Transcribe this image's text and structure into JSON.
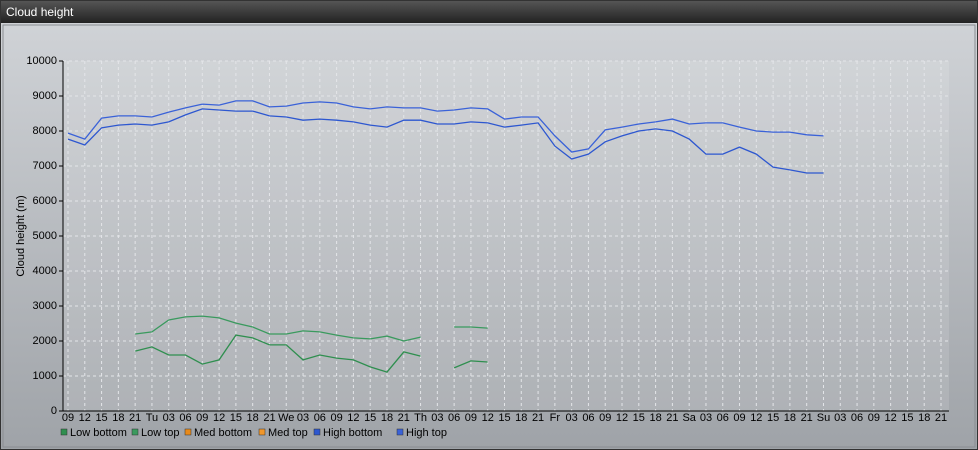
{
  "window": {
    "title": "Cloud height"
  },
  "chart_data": {
    "type": "line",
    "ylabel": "Cloud height (m)",
    "categories": [
      "09",
      "12",
      "15",
      "18",
      "21",
      "Tu",
      "03",
      "06",
      "09",
      "12",
      "15",
      "18",
      "21",
      "We",
      "03",
      "06",
      "09",
      "12",
      "15",
      "18",
      "21",
      "Th",
      "03",
      "06",
      "09",
      "12",
      "15",
      "18",
      "21",
      "Fr",
      "03",
      "06",
      "09",
      "12",
      "15",
      "18",
      "21",
      "Sa",
      "03",
      "06",
      "09",
      "12",
      "15",
      "18",
      "21",
      "Su",
      "03",
      "06",
      "09",
      "12",
      "15",
      "18",
      "21"
    ],
    "ylim": [
      0,
      10000
    ],
    "yticks": [
      0,
      1000,
      2000,
      3000,
      4000,
      5000,
      6000,
      7000,
      8000,
      9000,
      10000
    ],
    "grid": true,
    "series": [
      {
        "name": "Low bottom",
        "color": "#2f8f4f",
        "values": [
          null,
          null,
          null,
          null,
          1710,
          1830,
          1600,
          1600,
          1340,
          1460,
          2170,
          2090,
          1890,
          1890,
          1460,
          1600,
          1510,
          1460,
          1260,
          1110,
          1690,
          1570,
          null,
          1230,
          1430,
          1400,
          null,
          null,
          null,
          null,
          null,
          null,
          null,
          null,
          null,
          null,
          null,
          null,
          null,
          null,
          null,
          null,
          null,
          null,
          null,
          null,
          null,
          null,
          null,
          null,
          null,
          null,
          null
        ]
      },
      {
        "name": "Low top",
        "color": "#3a9a5e",
        "values": [
          null,
          null,
          null,
          null,
          2200,
          2260,
          2600,
          2690,
          2710,
          2660,
          2510,
          2400,
          2200,
          2200,
          2290,
          2260,
          2170,
          2090,
          2060,
          2140,
          2000,
          2110,
          null,
          2400,
          2400,
          2370,
          null,
          null,
          null,
          null,
          null,
          null,
          null,
          null,
          null,
          null,
          null,
          null,
          null,
          null,
          null,
          null,
          null,
          null,
          null,
          null,
          null,
          null,
          null,
          null,
          null,
          null,
          null
        ]
      },
      {
        "name": "Med bottom",
        "color": "#e88a1a",
        "values": [
          null,
          null,
          null,
          null,
          null,
          null,
          null,
          null,
          null,
          null,
          null,
          null,
          null,
          null,
          null,
          null,
          null,
          null,
          null,
          null,
          null,
          null,
          null,
          null,
          null,
          null,
          null,
          null,
          null,
          null,
          null,
          null,
          null,
          null,
          null,
          null,
          null,
          null,
          null,
          null,
          null,
          null,
          null,
          null,
          null,
          null,
          null,
          null,
          null,
          null,
          null,
          null,
          null
        ]
      },
      {
        "name": "Med top",
        "color": "#f0962a",
        "values": [
          null,
          null,
          null,
          null,
          null,
          null,
          null,
          null,
          null,
          null,
          null,
          null,
          null,
          null,
          null,
          null,
          null,
          null,
          null,
          null,
          null,
          null,
          null,
          null,
          null,
          null,
          null,
          null,
          null,
          null,
          null,
          null,
          null,
          null,
          null,
          null,
          null,
          null,
          null,
          null,
          null,
          null,
          null,
          null,
          null,
          null,
          null,
          null,
          null,
          null,
          null,
          null,
          null
        ]
      },
      {
        "name": "High bottom",
        "color": "#2d57d0",
        "values": [
          7770,
          7600,
          8090,
          8170,
          8200,
          8170,
          8260,
          8460,
          8630,
          8600,
          8570,
          8570,
          8430,
          8400,
          8310,
          8340,
          8310,
          8260,
          8170,
          8110,
          8310,
          8310,
          8200,
          8200,
          8260,
          8230,
          8110,
          8170,
          8230,
          7570,
          7200,
          7340,
          7690,
          7860,
          8000,
          8060,
          8000,
          7770,
          7340,
          7340,
          7540,
          7340,
          6970,
          6890,
          6800,
          6800,
          null,
          null,
          null,
          null,
          null,
          null,
          null
        ]
      },
      {
        "name": "High top",
        "color": "#3a62d8",
        "values": [
          7940,
          7770,
          8370,
          8430,
          8430,
          8400,
          8540,
          8660,
          8770,
          8740,
          8860,
          8860,
          8690,
          8710,
          8800,
          8830,
          8800,
          8690,
          8630,
          8690,
          8660,
          8660,
          8570,
          8600,
          8660,
          8630,
          8340,
          8400,
          8400,
          7860,
          7400,
          7490,
          8030,
          8110,
          8200,
          8260,
          8340,
          8200,
          8230,
          8230,
          8110,
          8000,
          7970,
          7970,
          7890,
          7860,
          null,
          null,
          null,
          null,
          null,
          null,
          null
        ]
      }
    ]
  }
}
